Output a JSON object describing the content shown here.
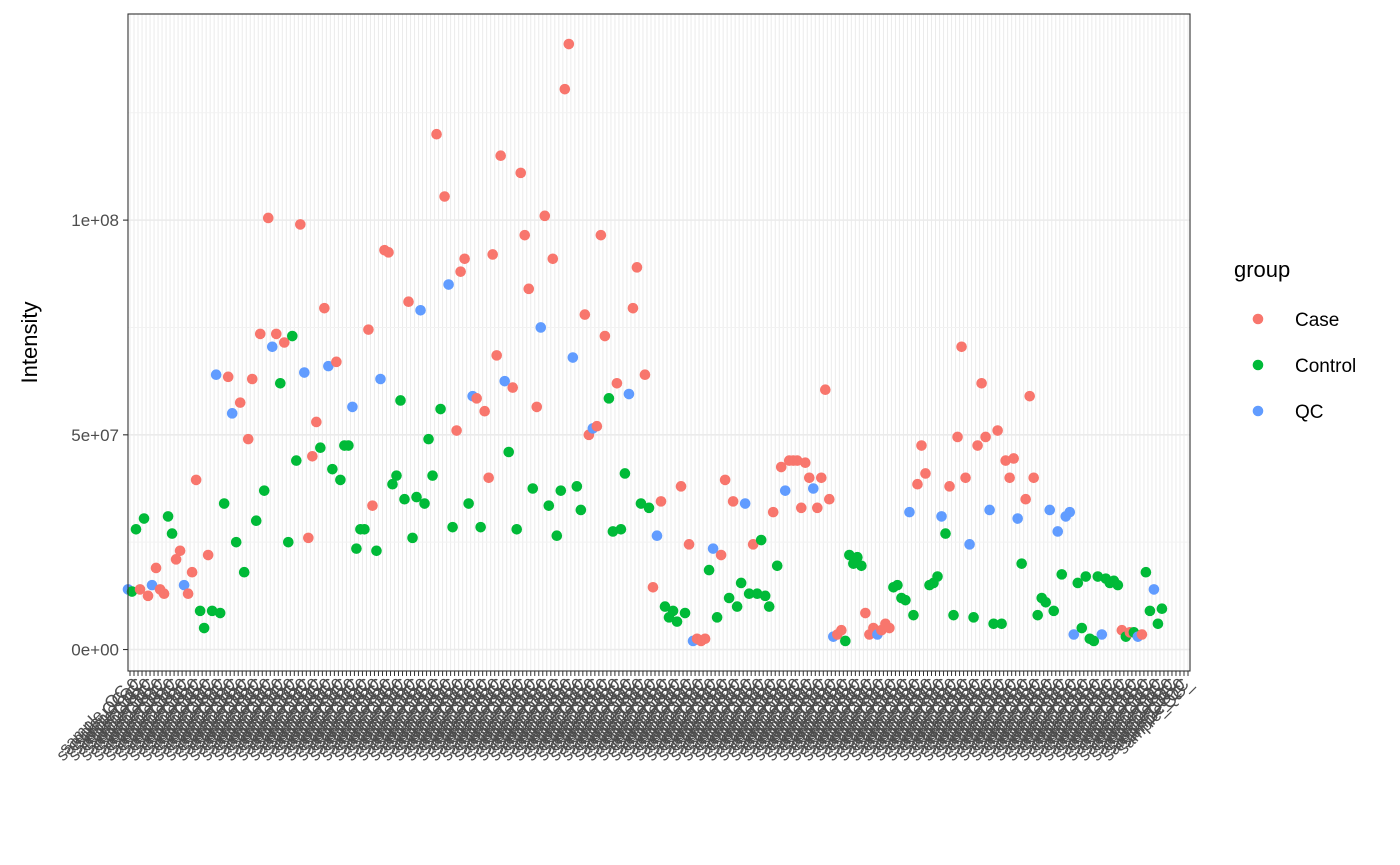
{
  "chart_data": {
    "type": "scatter",
    "ylabel": "Intensity",
    "xlabel": "",
    "ylim": [
      -5000000,
      148000000
    ],
    "y_ticks": [
      0,
      50000000,
      100000000
    ],
    "y_tick_labels": [
      "0e+00",
      "5e+07",
      "1e+08"
    ],
    "x_tick_label_prefix": "sample",
    "x_tick_label_prefixes": [
      "sample_QC",
      "sample_QC_",
      "sample_QC_0"
    ],
    "n_samples": 265,
    "legend": {
      "title": "group",
      "position": "right",
      "entries": [
        {
          "name": "Case",
          "color": "#F8766D"
        },
        {
          "name": "Control",
          "color": "#00BA38"
        },
        {
          "name": "QC",
          "color": "#619CFF"
        }
      ]
    },
    "grid": true,
    "points": [
      [
        1,
        14000000.0,
        "QC"
      ],
      [
        3,
        13500000.0,
        "Control"
      ],
      [
        5,
        28000000.0,
        "Control"
      ],
      [
        7,
        14000000.0,
        "Case"
      ],
      [
        9,
        30500000.0,
        "Control"
      ],
      [
        11,
        12500000.0,
        "Case"
      ],
      [
        13,
        15000000.0,
        "QC"
      ],
      [
        15,
        19000000.0,
        "Case"
      ],
      [
        17,
        14000000.0,
        "Case"
      ],
      [
        19,
        13000000.0,
        "Case"
      ],
      [
        21,
        31000000.0,
        "Control"
      ],
      [
        23,
        27000000.0,
        "Control"
      ],
      [
        25,
        21000000.0,
        "Case"
      ],
      [
        27,
        23000000.0,
        "Case"
      ],
      [
        29,
        15000000.0,
        "QC"
      ],
      [
        31,
        13000000.0,
        "Case"
      ],
      [
        33,
        18000000.0,
        "Case"
      ],
      [
        35,
        39500000.0,
        "Case"
      ],
      [
        37,
        9000000.0,
        "Control"
      ],
      [
        39,
        5000000.0,
        "Control"
      ],
      [
        41,
        22000000.0,
        "Case"
      ],
      [
        43,
        9000000.0,
        "Control"
      ],
      [
        45,
        64000000.0,
        "QC"
      ],
      [
        47,
        8500000.0,
        "Control"
      ],
      [
        49,
        34000000.0,
        "Control"
      ],
      [
        51,
        63500000.0,
        "Case"
      ],
      [
        53,
        55000000.0,
        "QC"
      ],
      [
        55,
        25000000.0,
        "Control"
      ],
      [
        57,
        57500000.0,
        "Case"
      ],
      [
        59,
        18000000.0,
        "Control"
      ],
      [
        61,
        49000000.0,
        "Case"
      ],
      [
        63,
        63000000.0,
        "Case"
      ],
      [
        65,
        30000000.0,
        "Control"
      ],
      [
        67,
        73500000.0,
        "Case"
      ],
      [
        69,
        37000000.0,
        "Control"
      ],
      [
        71,
        100500000.0,
        "Case"
      ],
      [
        73,
        70500000.0,
        "QC"
      ],
      [
        75,
        73500000.0,
        "Case"
      ],
      [
        77,
        62000000.0,
        "Control"
      ],
      [
        79,
        71500000.0,
        "Case"
      ],
      [
        81,
        25000000.0,
        "Control"
      ],
      [
        83,
        73000000.0,
        "Control"
      ],
      [
        85,
        44000000.0,
        "Control"
      ],
      [
        87,
        99000000.0,
        "Case"
      ],
      [
        89,
        64500000.0,
        "QC"
      ],
      [
        91,
        26000000.0,
        "Case"
      ],
      [
        93,
        45000000.0,
        "Case"
      ],
      [
        95,
        53000000.0,
        "Case"
      ],
      [
        97,
        47000000.0,
        "Control"
      ],
      [
        99,
        79500000.0,
        "Case"
      ],
      [
        101,
        66000000.0,
        "QC"
      ],
      [
        103,
        42000000.0,
        "Control"
      ],
      [
        105,
        67000000.0,
        "Case"
      ],
      [
        107,
        39500000.0,
        "Control"
      ],
      [
        109,
        47500000.0,
        "Control"
      ],
      [
        111,
        47500000.0,
        "Control"
      ],
      [
        113,
        56500000.0,
        "QC"
      ],
      [
        115,
        23500000.0,
        "Control"
      ],
      [
        117,
        28000000.0,
        "Control"
      ],
      [
        119,
        28000000.0,
        "Control"
      ],
      [
        121,
        74500000.0,
        "Case"
      ],
      [
        123,
        33500000.0,
        "Case"
      ],
      [
        125,
        23000000.0,
        "Control"
      ],
      [
        127,
        63000000.0,
        "QC"
      ],
      [
        129,
        93000000.0,
        "Case"
      ],
      [
        131,
        92500000.0,
        "Case"
      ],
      [
        133,
        38500000.0,
        "Control"
      ],
      [
        135,
        40500000.0,
        "Control"
      ],
      [
        137,
        58000000.0,
        "Control"
      ],
      [
        139,
        35000000.0,
        "Control"
      ],
      [
        141,
        81000000.0,
        "Case"
      ],
      [
        143,
        26000000.0,
        "Control"
      ],
      [
        145,
        35500000.0,
        "Control"
      ],
      [
        147,
        79000000.0,
        "QC"
      ],
      [
        149,
        34000000.0,
        "Control"
      ],
      [
        151,
        49000000.0,
        "Control"
      ],
      [
        153,
        40500000.0,
        "Control"
      ],
      [
        155,
        120000000.0,
        "Case"
      ],
      [
        157,
        56000000.0,
        "Control"
      ],
      [
        159,
        105500000.0,
        "Case"
      ],
      [
        161,
        85000000.0,
        "QC"
      ],
      [
        163,
        28500000.0,
        "Control"
      ],
      [
        165,
        51000000.0,
        "Case"
      ],
      [
        167,
        88000000.0,
        "Case"
      ],
      [
        169,
        91000000.0,
        "Case"
      ],
      [
        171,
        34000000.0,
        "Control"
      ],
      [
        173,
        59000000.0,
        "QC"
      ],
      [
        175,
        58500000.0,
        "Case"
      ],
      [
        177,
        28500000.0,
        "Control"
      ],
      [
        179,
        55500000.0,
        "Case"
      ],
      [
        181,
        40000000.0,
        "Case"
      ],
      [
        183,
        92000000.0,
        "Case"
      ],
      [
        185,
        68500000.0,
        "Case"
      ],
      [
        187,
        115000000.0,
        "Case"
      ],
      [
        189,
        62500000.0,
        "QC"
      ],
      [
        191,
        46000000.0,
        "Control"
      ],
      [
        193,
        61000000.0,
        "Case"
      ],
      [
        195,
        28000000.0,
        "Control"
      ],
      [
        197,
        111000000.0,
        "Case"
      ],
      [
        199,
        96500000.0,
        "Case"
      ],
      [
        201,
        84000000.0,
        "Case"
      ],
      [
        203,
        37500000.0,
        "Control"
      ],
      [
        205,
        56500000.0,
        "Case"
      ],
      [
        207,
        75000000.0,
        "QC"
      ],
      [
        209,
        101000000.0,
        "Case"
      ],
      [
        211,
        33500000.0,
        "Control"
      ],
      [
        213,
        91000000.0,
        "Case"
      ],
      [
        215,
        26500000.0,
        "Control"
      ],
      [
        217,
        37000000.0,
        "Control"
      ],
      [
        219,
        130500000.0,
        "Case"
      ],
      [
        221,
        141000000.0,
        "Case"
      ],
      [
        223,
        68000000.0,
        "QC"
      ],
      [
        225,
        38000000.0,
        "Control"
      ],
      [
        227,
        32500000.0,
        "Control"
      ],
      [
        229,
        78000000.0,
        "Case"
      ],
      [
        231,
        50000000.0,
        "Case"
      ],
      [
        233,
        51500000.0,
        "QC"
      ],
      [
        235,
        52000000.0,
        "Case"
      ],
      [
        237,
        96500000.0,
        "Case"
      ],
      [
        239,
        73000000.0,
        "Case"
      ],
      [
        241,
        58500000.0,
        "Control"
      ],
      [
        243,
        27500000.0,
        "Control"
      ],
      [
        245,
        62000000.0,
        "Case"
      ],
      [
        247,
        28000000.0,
        "Control"
      ],
      [
        249,
        41000000.0,
        "Control"
      ],
      [
        251,
        59500000.0,
        "QC"
      ],
      [
        253,
        79500000.0,
        "Case"
      ],
      [
        255,
        89000000.0,
        "Case"
      ],
      [
        257,
        34000000.0,
        "Control"
      ],
      [
        259,
        64000000.0,
        "Case"
      ],
      [
        261,
        33000000.0,
        "Control"
      ],
      [
        263,
        14500000.0,
        "Case"
      ],
      [
        265,
        26500000.0,
        "QC"
      ]
    ],
    "points_b": [
      [
        1,
        34500000.0,
        "Case"
      ],
      [
        3,
        10000000.0,
        "Control"
      ],
      [
        5,
        7500000.0,
        "Control"
      ],
      [
        7,
        9000000.0,
        "Control"
      ],
      [
        9,
        6500000.0,
        "Control"
      ],
      [
        11,
        38000000.0,
        "Case"
      ],
      [
        13,
        8500000.0,
        "Control"
      ],
      [
        15,
        24500000.0,
        "Case"
      ],
      [
        17,
        2000000.0,
        "QC"
      ],
      [
        19,
        2500000.0,
        "Case"
      ],
      [
        21,
        2000000.0,
        "Case"
      ],
      [
        23,
        2500000.0,
        "Case"
      ],
      [
        25,
        18500000.0,
        "Control"
      ],
      [
        27,
        23500000.0,
        "QC"
      ],
      [
        29,
        7500000.0,
        "Control"
      ],
      [
        31,
        22000000.0,
        "Case"
      ],
      [
        33,
        39500000.0,
        "Case"
      ],
      [
        35,
        12000000.0,
        "Control"
      ],
      [
        37,
        34500000.0,
        "Case"
      ],
      [
        39,
        10000000.0,
        "Control"
      ],
      [
        41,
        15500000.0,
        "Control"
      ],
      [
        43,
        34000000.0,
        "QC"
      ],
      [
        45,
        13000000.0,
        "Control"
      ],
      [
        47,
        24500000.0,
        "Case"
      ],
      [
        49,
        13000000.0,
        "Control"
      ],
      [
        51,
        25500000.0,
        "Control"
      ],
      [
        53,
        12500000.0,
        "Control"
      ],
      [
        55,
        10000000.0,
        "Control"
      ],
      [
        57,
        32000000.0,
        "Case"
      ],
      [
        59,
        19500000.0,
        "Control"
      ],
      [
        61,
        42500000.0,
        "Case"
      ],
      [
        63,
        37000000.0,
        "QC"
      ],
      [
        65,
        44000000.0,
        "Case"
      ],
      [
        67,
        44000000.0,
        "Case"
      ],
      [
        69,
        44000000.0,
        "Case"
      ],
      [
        71,
        33000000.0,
        "Case"
      ],
      [
        73,
        43500000.0,
        "Case"
      ],
      [
        75,
        40000000.0,
        "Case"
      ],
      [
        77,
        37500000.0,
        "QC"
      ],
      [
        79,
        33000000.0,
        "Case"
      ],
      [
        81,
        40000000.0,
        "Case"
      ],
      [
        83,
        60500000.0,
        "Case"
      ],
      [
        85,
        35000000.0,
        "Case"
      ],
      [
        87,
        3000000.0,
        "QC"
      ],
      [
        89,
        3500000.0,
        "Case"
      ],
      [
        91,
        4500000.0,
        "Case"
      ],
      [
        93,
        2000000.0,
        "Control"
      ],
      [
        95,
        22000000.0,
        "Control"
      ],
      [
        97,
        20000000.0,
        "Control"
      ],
      [
        99,
        21500000.0,
        "Control"
      ],
      [
        101,
        19500000.0,
        "Control"
      ],
      [
        103,
        8500000.0,
        "Case"
      ],
      [
        105,
        3500000.0,
        "Case"
      ],
      [
        107,
        5000000.0,
        "Case"
      ],
      [
        109,
        3500000.0,
        "QC"
      ],
      [
        111,
        4500000.0,
        "Case"
      ],
      [
        113,
        6000000.0,
        "Case"
      ],
      [
        115,
        5000000.0,
        "Case"
      ],
      [
        117,
        14500000.0,
        "Control"
      ],
      [
        119,
        15000000.0,
        "Control"
      ],
      [
        121,
        12000000.0,
        "Control"
      ],
      [
        123,
        11500000.0,
        "Control"
      ],
      [
        125,
        32000000.0,
        "QC"
      ],
      [
        127,
        8000000.0,
        "Control"
      ],
      [
        129,
        38500000.0,
        "Case"
      ],
      [
        131,
        47500000.0,
        "Case"
      ],
      [
        133,
        41000000.0,
        "Case"
      ],
      [
        135,
        15000000.0,
        "Control"
      ],
      [
        137,
        15500000.0,
        "Control"
      ],
      [
        139,
        17000000.0,
        "Control"
      ],
      [
        141,
        31000000.0,
        "QC"
      ],
      [
        143,
        27000000.0,
        "Control"
      ],
      [
        145,
        38000000.0,
        "Case"
      ],
      [
        147,
        8000000.0,
        "Control"
      ],
      [
        149,
        49500000.0,
        "Case"
      ],
      [
        151,
        70500000.0,
        "Case"
      ],
      [
        153,
        40000000.0,
        "Case"
      ],
      [
        155,
        24500000.0,
        "QC"
      ],
      [
        157,
        7500000.0,
        "Control"
      ],
      [
        159,
        47500000.0,
        "Case"
      ],
      [
        161,
        62000000.0,
        "Case"
      ],
      [
        163,
        49500000.0,
        "Case"
      ],
      [
        165,
        32500000.0,
        "QC"
      ],
      [
        167,
        6000000.0,
        "Control"
      ],
      [
        169,
        51000000.0,
        "Case"
      ],
      [
        171,
        6000000.0,
        "Control"
      ],
      [
        173,
        44000000.0,
        "Case"
      ],
      [
        175,
        40000000.0,
        "Case"
      ],
      [
        177,
        44500000.0,
        "Case"
      ],
      [
        179,
        30500000.0,
        "QC"
      ],
      [
        181,
        20000000.0,
        "Control"
      ],
      [
        183,
        35000000.0,
        "Case"
      ],
      [
        185,
        59000000.0,
        "Case"
      ],
      [
        187,
        40000000.0,
        "Case"
      ],
      [
        189,
        8000000.0,
        "Control"
      ],
      [
        191,
        12000000.0,
        "Control"
      ],
      [
        193,
        11000000.0,
        "Control"
      ],
      [
        195,
        32500000.0,
        "QC"
      ],
      [
        197,
        9000000.0,
        "Control"
      ],
      [
        199,
        27500000.0,
        "QC"
      ],
      [
        201,
        17500000.0,
        "Control"
      ],
      [
        203,
        31000000.0,
        "QC"
      ],
      [
        205,
        32000000.0,
        "QC"
      ],
      [
        207,
        3500000.0,
        "QC"
      ],
      [
        209,
        15500000.0,
        "Control"
      ],
      [
        211,
        5000000.0,
        "Control"
      ],
      [
        213,
        17000000.0,
        "Control"
      ],
      [
        215,
        2500000.0,
        "Control"
      ],
      [
        217,
        2000000.0,
        "Control"
      ],
      [
        219,
        17000000.0,
        "Control"
      ],
      [
        221,
        3500000.0,
        "QC"
      ],
      [
        223,
        16500000.0,
        "Control"
      ],
      [
        225,
        15500000.0,
        "Control"
      ],
      [
        227,
        16000000.0,
        "Control"
      ],
      [
        229,
        15000000.0,
        "Control"
      ],
      [
        231,
        4500000.0,
        "Case"
      ],
      [
        233,
        3000000.0,
        "Control"
      ],
      [
        235,
        4000000.0,
        "Case"
      ],
      [
        237,
        4000000.0,
        "Control"
      ],
      [
        239,
        3000000.0,
        "QC"
      ],
      [
        241,
        3500000.0,
        "Case"
      ],
      [
        243,
        18000000.0,
        "Control"
      ],
      [
        245,
        9000000.0,
        "Control"
      ],
      [
        247,
        14000000.0,
        "QC"
      ],
      [
        249,
        6000000.0,
        "Control"
      ],
      [
        251,
        9500000.0,
        "Control"
      ]
    ]
  }
}
